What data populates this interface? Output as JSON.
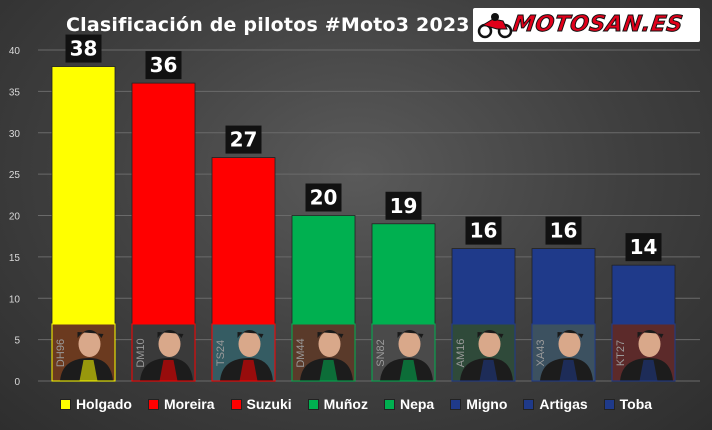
{
  "chart_data": {
    "type": "bar",
    "title": "Clasificación de pilotos #Moto3 2023",
    "categories": [
      "Holgado",
      "Moreira",
      "Suzuki",
      "Muñoz",
      "Nepa",
      "Migno",
      "Artigas",
      "Toba"
    ],
    "values": [
      38,
      36,
      27,
      20,
      19,
      16,
      16,
      14
    ],
    "photo_labels": [
      "DH96",
      "DM10",
      "TS24",
      "DM44",
      "SN82",
      "AM16",
      "XA43",
      "KT27"
    ],
    "colors": [
      "#ffff00",
      "#ff0000",
      "#ff0000",
      "#00b050",
      "#00b050",
      "#1f3a8a",
      "#1f3a8a",
      "#1f3a8a"
    ],
    "ylim": [
      0,
      40
    ],
    "yticks": [
      0,
      5,
      10,
      15,
      20,
      25,
      30,
      35,
      40
    ],
    "xlabel": "",
    "ylabel": "",
    "legend": "bottom",
    "grid": true
  },
  "logo": {
    "text": "MOTOSAN.ES"
  }
}
